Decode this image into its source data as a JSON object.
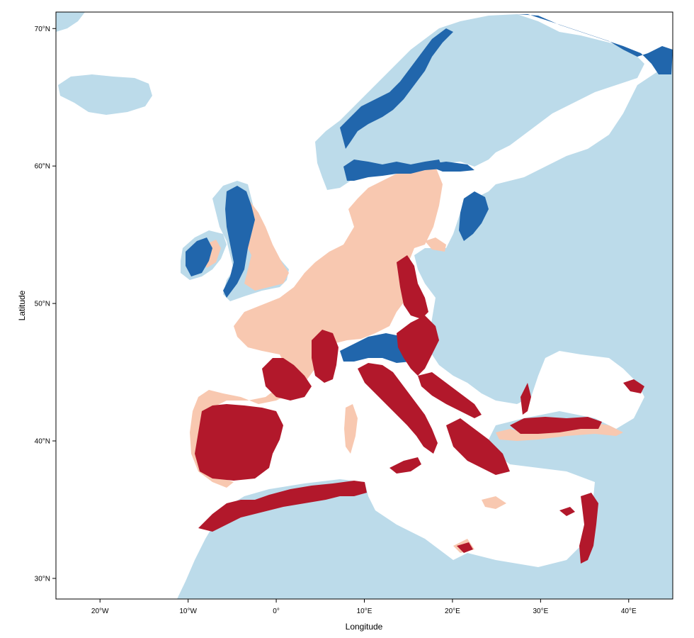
{
  "map": {
    "xlabel": "Longitude",
    "ylabel": "Latitude",
    "x_ticks": [
      "20°W",
      "10°W",
      "0°",
      "10°E",
      "20°E",
      "30°E",
      "40°E"
    ],
    "y_ticks": [
      "30°N",
      "40°N",
      "50°N",
      "60°N",
      "70°N"
    ],
    "x_range": [
      -25,
      45
    ],
    "y_range": [
      28.5,
      71.2
    ],
    "colors": {
      "background": "#ffffff",
      "light_blue": "#bcdbea",
      "dark_blue": "#2166ac",
      "light_pink": "#f8c8b0",
      "dark_red": "#b2182b"
    },
    "legend": "none"
  }
}
